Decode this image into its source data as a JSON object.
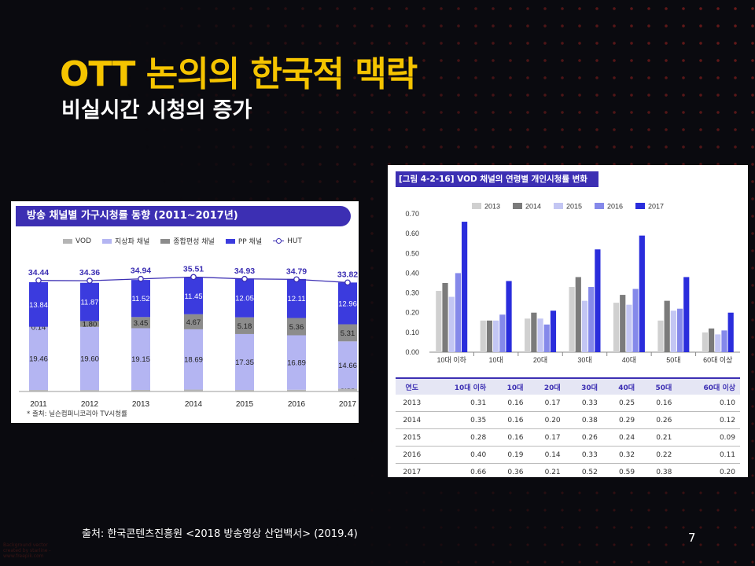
{
  "slide": {
    "title": "OTT 논의의 한국적 맥락",
    "subtitle": "비실시간 시청의 증가",
    "source_footer": "출처: 한국콘텐츠진흥원 <2018 방송영상 산업백서> (2019.4)",
    "page_number": "7",
    "bg_credit": "Background vector created by starline - www.freepik.com"
  },
  "chart_data": [
    {
      "type": "bar",
      "stacked": true,
      "title": "방송 채널별 가구시청률 동향 (2011~2017년)",
      "categories": [
        "2011",
        "2012",
        "2013",
        "2014",
        "2015",
        "2016",
        "2017"
      ],
      "series": [
        {
          "name": "VOD",
          "color": "#b5b5b5",
          "values": [
            0.47,
            0.45,
            0.49,
            0.6,
            0.47,
            0.55,
            0.88
          ]
        },
        {
          "name": "지상파 채널",
          "color": "#b4b5f2",
          "values": [
            19.46,
            19.6,
            19.15,
            18.69,
            17.35,
            16.89,
            14.66
          ]
        },
        {
          "name": "종합편성 채널",
          "color": "#8c8c8c",
          "values": [
            0.14,
            1.8,
            3.45,
            4.67,
            5.18,
            5.36,
            5.31
          ]
        },
        {
          "name": "PP 채널",
          "color": "#3b3bde",
          "values": [
            13.84,
            11.87,
            11.52,
            11.45,
            12.05,
            12.11,
            12.96
          ]
        }
      ],
      "line_series": {
        "name": "HUT",
        "color": "#3c2fb3",
        "values": [
          34.44,
          34.36,
          34.94,
          35.51,
          34.93,
          34.79,
          33.82
        ]
      },
      "source_note": "* 출처: 닐슨컴퍼니코리아 TV시청률"
    },
    {
      "type": "bar",
      "title": "[그림 4-2-16] VOD 채널의 연령별 개인시청률 변화",
      "categories": [
        "10대 이하",
        "10대",
        "20대",
        "30대",
        "40대",
        "50대",
        "60대 이상"
      ],
      "series": [
        {
          "name": "2013",
          "color": "#d0d0d0",
          "values": [
            0.31,
            0.16,
            0.17,
            0.33,
            0.25,
            0.16,
            0.1
          ]
        },
        {
          "name": "2014",
          "color": "#7b7b7b",
          "values": [
            0.35,
            0.16,
            0.2,
            0.38,
            0.29,
            0.26,
            0.12
          ]
        },
        {
          "name": "2015",
          "color": "#c3c6f3",
          "values": [
            0.28,
            0.16,
            0.17,
            0.26,
            0.24,
            0.21,
            0.09
          ]
        },
        {
          "name": "2016",
          "color": "#8589ea",
          "values": [
            0.4,
            0.19,
            0.14,
            0.33,
            0.32,
            0.22,
            0.11
          ]
        },
        {
          "name": "2017",
          "color": "#2a2ddc",
          "values": [
            0.66,
            0.36,
            0.21,
            0.52,
            0.59,
            0.38,
            0.2
          ]
        }
      ],
      "yticks": [
        "0.00",
        "0.10",
        "0.20",
        "0.30",
        "0.40",
        "0.50",
        "0.60",
        "0.70"
      ],
      "ylim": [
        0,
        0.7
      ],
      "table": {
        "header": [
          "연도",
          "10대 이하",
          "10대",
          "20대",
          "30대",
          "40대",
          "50대",
          "60대 이상"
        ],
        "rows": [
          [
            "2013",
            "0.31",
            "0.16",
            "0.17",
            "0.33",
            "0.25",
            "0.16",
            "0.10"
          ],
          [
            "2014",
            "0.35",
            "0.16",
            "0.20",
            "0.38",
            "0.29",
            "0.26",
            "0.12"
          ],
          [
            "2015",
            "0.28",
            "0.16",
            "0.17",
            "0.26",
            "0.24",
            "0.21",
            "0.09"
          ],
          [
            "2016",
            "0.40",
            "0.19",
            "0.14",
            "0.33",
            "0.32",
            "0.22",
            "0.11"
          ],
          [
            "2017",
            "0.66",
            "0.36",
            "0.21",
            "0.52",
            "0.59",
            "0.38",
            "0.20"
          ]
        ]
      }
    }
  ]
}
